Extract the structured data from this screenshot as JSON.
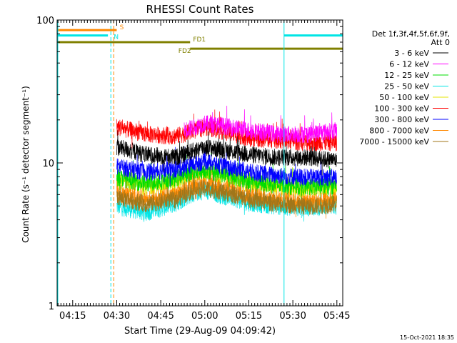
{
  "chart_data": {
    "type": "line",
    "title": "RHESSI Count Rates",
    "xlabel": "Start Time (29-Aug-09 04:09:42)",
    "ylabel": "Count Rate (s⁻¹ detector segment⁻¹)",
    "y_scale": "log",
    "ylim": [
      1,
      100
    ],
    "y_ticks": [
      "1",
      "10",
      "100"
    ],
    "x_range_minutes": [
      "04:09:42",
      "05:47:00"
    ],
    "x_ticks": [
      "04:15",
      "04:30",
      "04:45",
      "05:00",
      "05:15",
      "05:30",
      "05:45"
    ],
    "date_stamp": "15-Oct-2021 18:35",
    "legend": {
      "placement": "right",
      "header_lines": [
        "Det 1f,3f,4f,5f,6f,9f,",
        "Att 0"
      ],
      "entries": [
        {
          "label": "3 - 6 keV",
          "color": "#000000"
        },
        {
          "label": "6 - 12 keV",
          "color": "#ff00ff"
        },
        {
          "label": "12 - 25 keV",
          "color": "#00dd00"
        },
        {
          "label": "25 - 50 keV",
          "color": "#00e5e5"
        },
        {
          "label": "50 - 100 keV",
          "color": "#e6e600"
        },
        {
          "label": "100 - 300 keV",
          "color": "#ff0000"
        },
        {
          "label": "300 - 800 keV",
          "color": "#0000ff"
        },
        {
          "label": "800 - 7000 keV",
          "color": "#ff8800"
        },
        {
          "label": "7000 - 15000 keV",
          "color": "#a0761a"
        }
      ]
    },
    "series": [
      {
        "name": "3 - 6 keV",
        "color": "#000000",
        "start": "04:30",
        "end": "05:45",
        "x": [
          "04:30",
          "04:40",
          "04:50",
          "04:55",
          "05:00",
          "05:05",
          "05:15",
          "05:25",
          "05:35",
          "05:45"
        ],
        "y": [
          13,
          11.5,
          11,
          12,
          13,
          12.5,
          11.5,
          11,
          11,
          10.5
        ]
      },
      {
        "name": "6 - 12 keV",
        "color": "#ff00ff",
        "start": "04:53",
        "end": "05:45",
        "x": [
          "04:53",
          "05:00",
          "05:05",
          "05:15",
          "05:25",
          "05:35",
          "05:45"
        ],
        "y": [
          17,
          19,
          18.5,
          17,
          16,
          16,
          17
        ]
      },
      {
        "name": "12 - 25 keV",
        "color": "#00dd00",
        "start": "04:30",
        "end": "05:45",
        "x": [
          "04:30",
          "04:40",
          "04:50",
          "04:55",
          "05:00",
          "05:05",
          "05:15",
          "05:25",
          "05:35",
          "05:45"
        ],
        "y": [
          8,
          7.2,
          7.8,
          8.6,
          9,
          8.5,
          7.5,
          7,
          6.8,
          7
        ]
      },
      {
        "name": "25 - 50 keV",
        "color": "#00e5e5",
        "start": "04:30",
        "end": "05:45",
        "x": [
          "04:30",
          "04:40",
          "04:50",
          "04:55",
          "05:00",
          "05:05",
          "05:15",
          "05:25",
          "05:35",
          "05:45"
        ],
        "y": [
          5,
          4.5,
          5.2,
          6,
          6.5,
          6,
          5.3,
          5,
          4.9,
          5
        ]
      },
      {
        "name": "50 - 100 keV",
        "color": "#e6e600",
        "start": "04:30",
        "end": "05:45",
        "x": [
          "04:30",
          "04:40",
          "04:50",
          "04:55",
          "05:00",
          "05:05",
          "05:15",
          "05:25",
          "05:35",
          "05:45"
        ],
        "y": [
          7.5,
          6.8,
          7.3,
          8,
          8.6,
          8.2,
          7.2,
          6.8,
          6.6,
          6.8
        ]
      },
      {
        "name": "100 - 300 keV",
        "color": "#ff0000",
        "start": "04:30",
        "end": "05:45",
        "x": [
          "04:30",
          "04:40",
          "04:50",
          "04:55",
          "05:00",
          "05:05",
          "05:15",
          "05:25",
          "05:35",
          "05:45"
        ],
        "y": [
          18,
          16,
          15.5,
          16.5,
          18,
          17,
          15,
          14.5,
          14,
          14
        ]
      },
      {
        "name": "300 - 800 keV",
        "color": "#0000ff",
        "start": "04:30",
        "end": "05:45",
        "x": [
          "04:30",
          "04:40",
          "04:50",
          "04:55",
          "05:00",
          "05:05",
          "05:15",
          "05:25",
          "05:35",
          "05:45"
        ],
        "y": [
          9.5,
          8.7,
          9,
          9.8,
          10.3,
          9.7,
          8.7,
          8.2,
          8,
          8
        ]
      },
      {
        "name": "800 - 7000 keV",
        "color": "#ff8800",
        "start": "04:30",
        "end": "05:45",
        "x": [
          "04:30",
          "04:40",
          "04:50",
          "04:55",
          "05:00",
          "05:05",
          "05:15",
          "05:25",
          "05:35",
          "05:45"
        ],
        "y": [
          6.2,
          5.6,
          6,
          6.8,
          7.2,
          6.8,
          6,
          5.6,
          5.4,
          5.5
        ]
      },
      {
        "name": "7000 - 15000 keV",
        "color": "#a0761a",
        "start": "04:30",
        "end": "05:45",
        "x": [
          "04:30",
          "04:40",
          "04:50",
          "04:55",
          "05:00",
          "05:05",
          "05:15",
          "05:25",
          "05:35",
          "05:45"
        ],
        "y": [
          5.8,
          5.2,
          5.6,
          6.3,
          6.7,
          6.4,
          5.6,
          5.2,
          5,
          5.2
        ]
      }
    ],
    "flag_bars": [
      {
        "label": "S",
        "color": "#ff8800",
        "start": "04:09:42",
        "end": "04:30",
        "y": 85,
        "label_at": "04:31"
      },
      {
        "label": "N",
        "color": "#00e5e5",
        "start": "04:09:42",
        "end": "04:27",
        "y": 78,
        "label_at": "04:29"
      },
      {
        "label": "",
        "color": "#00e5e5",
        "start": "05:27",
        "end": "05:47",
        "y": 78,
        "label_at": ""
      },
      {
        "label": "FD1",
        "color": "#808000",
        "start": "04:09:42",
        "end": "04:55",
        "y": 70,
        "label_at": "04:56"
      },
      {
        "label": "FD2",
        "color": "#808000",
        "start": "04:55",
        "end": "05:47",
        "y": 63,
        "label_at": "04:51"
      }
    ],
    "vertical_lines": [
      {
        "time": "04:09:42",
        "color": "#00e5e5",
        "style": "solid"
      },
      {
        "time": "04:28",
        "color": "#00e5e5",
        "style": "dashed"
      },
      {
        "time": "04:29",
        "color": "#ff8800",
        "style": "dashed"
      },
      {
        "time": "05:27",
        "color": "#00e5e5",
        "style": "solid"
      },
      {
        "time": "05:47",
        "color": "#00e5e5",
        "style": "dashed"
      }
    ]
  }
}
